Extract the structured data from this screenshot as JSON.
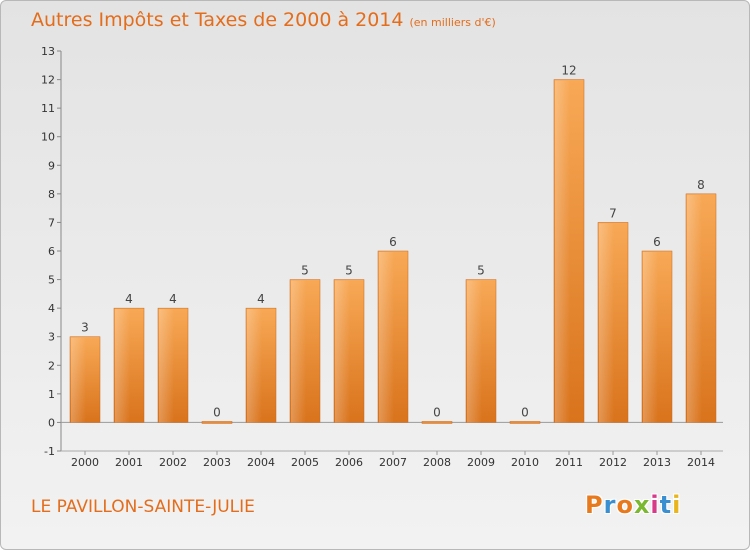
{
  "chart_data": {
    "type": "bar",
    "title": "Autres Impôts et Taxes de 2000 à 2014",
    "subtitle": "(en milliers d'€)",
    "categories": [
      "2000",
      "2001",
      "2002",
      "2003",
      "2004",
      "2005",
      "2006",
      "2007",
      "2008",
      "2009",
      "2010",
      "2011",
      "2012",
      "2013",
      "2014"
    ],
    "values": [
      3,
      4,
      4,
      0,
      4,
      5,
      5,
      6,
      0,
      5,
      0,
      12,
      7,
      6,
      8
    ],
    "ylim": [
      -1,
      13
    ],
    "yticks": [
      -1,
      0,
      1,
      2,
      3,
      4,
      5,
      6,
      7,
      8,
      9,
      10,
      11,
      12,
      13
    ],
    "grid": false,
    "bar_color": "#f0952f"
  },
  "footer": {
    "town": "LE PAVILLON-SAINTE-JULIE",
    "logo_letters": [
      "P",
      "r",
      "o",
      "x",
      "i",
      "t",
      "i"
    ],
    "logo_colors": [
      "#e87a1e",
      "#3a8fd0",
      "#e87a1e",
      "#7ab82f",
      "#d83a8a",
      "#3a8fd0",
      "#e8b51e"
    ]
  }
}
